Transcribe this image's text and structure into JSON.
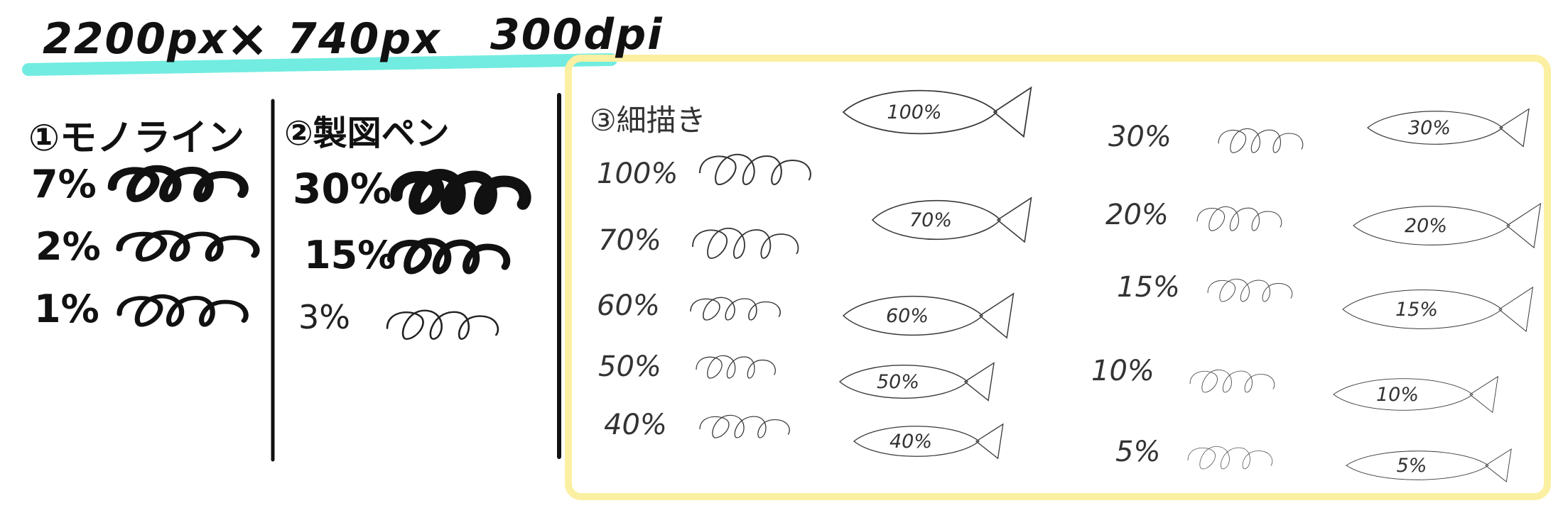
{
  "title": {
    "width_text": "2200px",
    "times_symbol": "×",
    "height_text": "740px",
    "dpi_text": "300dpi"
  },
  "colors": {
    "highlight": "#72ece0",
    "frame": "#fbf0a2",
    "ink": "#111111",
    "fine_ink": "#3a3a3a"
  },
  "section1": {
    "heading": "①モノライン",
    "rows": [
      {
        "percent": "7%",
        "stroke_width": 7
      },
      {
        "percent": "2%",
        "stroke_width": 2
      },
      {
        "percent": "1%",
        "stroke_width": 1
      }
    ]
  },
  "section2": {
    "heading": "②製図ペン",
    "rows": [
      {
        "percent": "30%",
        "stroke_width": 30
      },
      {
        "percent": "15%",
        "stroke_width": 15
      },
      {
        "percent": "3%",
        "stroke_width": 3
      }
    ]
  },
  "section3": {
    "heading": "③細描き",
    "left_rows": [
      {
        "percent": "100%",
        "stroke_width": 100
      },
      {
        "percent": "70%",
        "stroke_width": 70
      },
      {
        "percent": "60%",
        "stroke_width": 60
      },
      {
        "percent": "50%",
        "stroke_width": 50
      },
      {
        "percent": "40%",
        "stroke_width": 40
      }
    ],
    "right_rows": [
      {
        "percent": "30%",
        "stroke_width": 30
      },
      {
        "percent": "20%",
        "stroke_width": 20
      },
      {
        "percent": "15%",
        "stroke_width": 15
      },
      {
        "percent": "10%",
        "stroke_width": 10
      },
      {
        "percent": "5%",
        "stroke_width": 5
      }
    ],
    "fish_labels": {
      "f100": "100%",
      "f70": "70%",
      "f60": "60%",
      "f50": "50%",
      "f40": "40%",
      "f30": "30%",
      "f20": "20%",
      "f15": "15%",
      "f10": "10%",
      "f5": "5%"
    }
  }
}
